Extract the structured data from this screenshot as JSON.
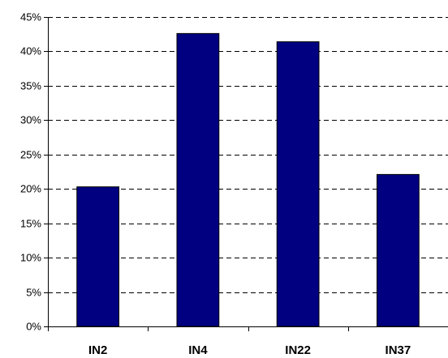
{
  "chart_data": {
    "type": "bar",
    "title": "",
    "xlabel": "",
    "ylabel": "",
    "categories": [
      "IN2",
      "IN4",
      "IN22",
      "IN37"
    ],
    "values": [
      20.3,
      42.6,
      41.4,
      22.1
    ],
    "ylim": [
      0,
      45
    ],
    "ytick_values": [
      0,
      5,
      10,
      15,
      20,
      25,
      30,
      35,
      40,
      45
    ],
    "ytick_labels": [
      "0%",
      "5%",
      "10%",
      "15%",
      "20%",
      "25%",
      "30%",
      "35%",
      "40%",
      "45%"
    ],
    "grid": true,
    "legend": false,
    "colors": {
      "bar": "#000080",
      "bar_edge": "#000000",
      "grid": "#000000"
    }
  }
}
